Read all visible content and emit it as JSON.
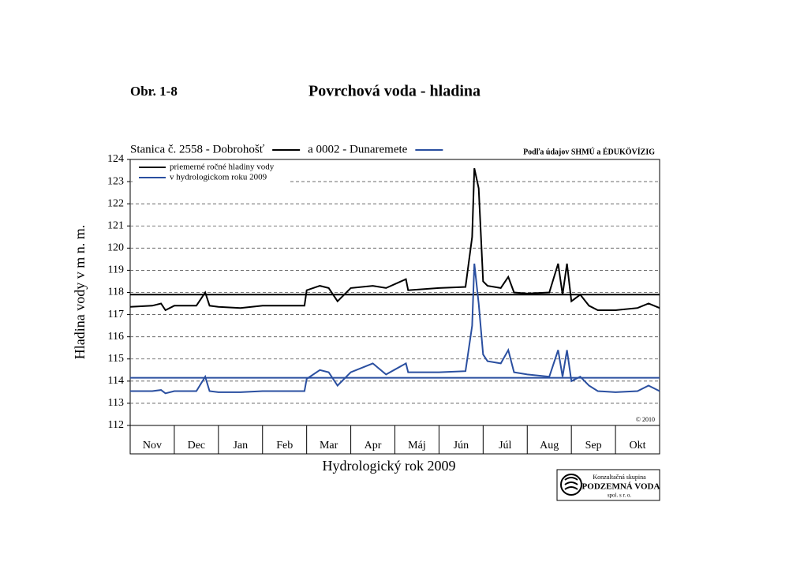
{
  "chart_data": {
    "type": "line",
    "figure_label": "Obr. 1-8",
    "title": "Povrchová voda - hladina",
    "source": "Podľa údajov SHMÚ a ÉDUKÖVÍZIG",
    "copyright": "© 2010",
    "xlabel": "Hydrologický rok 2009",
    "ylabel": "Hladina vody v m n. m.",
    "xlim": [
      0,
      12
    ],
    "xticks": [
      {
        "value": 0.5,
        "label": "Nov"
      },
      {
        "value": 1.5,
        "label": "Dec"
      },
      {
        "value": 2.5,
        "label": "Jan"
      },
      {
        "value": 3.5,
        "label": "Feb"
      },
      {
        "value": 4.5,
        "label": "Mar"
      },
      {
        "value": 5.5,
        "label": "Apr"
      },
      {
        "value": 6.5,
        "label": "Máj"
      },
      {
        "value": 7.5,
        "label": "Jún"
      },
      {
        "value": 8.5,
        "label": "Júl"
      },
      {
        "value": 9.5,
        "label": "Aug"
      },
      {
        "value": 10.5,
        "label": "Sep"
      },
      {
        "value": 11.5,
        "label": "Okt"
      }
    ],
    "ylim": [
      112,
      124
    ],
    "yticks": [
      112,
      113,
      114,
      115,
      116,
      117,
      118,
      119,
      120,
      121,
      122,
      123,
      124
    ],
    "grid": true,
    "x": [
      0,
      0.5,
      0.7,
      0.8,
      1,
      1.5,
      1.7,
      1.8,
      2,
      2.5,
      3,
      3.5,
      3.95,
      4.0,
      4.3,
      4.5,
      4.7,
      5.0,
      5.5,
      5.8,
      6.25,
      6.3,
      7.0,
      7.6,
      7.75,
      7.8,
      7.9,
      8.0,
      8.1,
      8.4,
      8.57,
      8.7,
      9.0,
      9.5,
      9.7,
      9.8,
      9.9,
      10.0,
      10.2,
      10.4,
      10.6,
      11.0,
      11.5,
      11.75,
      12
    ],
    "series": [
      {
        "name": "Stanica č. 2558 - Dobrohošť",
        "color": "#000000",
        "values": [
          117.35,
          117.4,
          117.5,
          117.2,
          117.4,
          117.4,
          118.0,
          117.4,
          117.35,
          117.3,
          117.4,
          117.4,
          117.4,
          118.1,
          118.3,
          118.2,
          117.6,
          118.2,
          118.3,
          118.2,
          118.6,
          118.1,
          118.2,
          118.25,
          120.5,
          123.6,
          122.7,
          118.5,
          118.3,
          118.2,
          118.7,
          118.0,
          117.95,
          118.0,
          119.3,
          117.9,
          119.3,
          117.6,
          117.9,
          117.4,
          117.2,
          117.2,
          117.3,
          117.5,
          117.3
        ]
      },
      {
        "name": "a 0002 - Dunaremete",
        "color": "#2a4fa0",
        "values": [
          113.55,
          113.55,
          113.6,
          113.45,
          113.55,
          113.55,
          114.2,
          113.55,
          113.5,
          113.5,
          113.55,
          113.55,
          113.55,
          114.1,
          114.5,
          114.4,
          113.8,
          114.4,
          114.8,
          114.3,
          114.8,
          114.4,
          114.4,
          114.45,
          116.5,
          119.3,
          117.5,
          115.2,
          114.9,
          114.8,
          115.4,
          114.4,
          114.3,
          114.2,
          115.4,
          114.2,
          115.4,
          114.0,
          114.2,
          113.8,
          113.55,
          113.5,
          113.55,
          113.8,
          113.55
        ]
      }
    ],
    "mean_lines": [
      {
        "value": 117.9,
        "color": "#000000"
      },
      {
        "value": 114.15,
        "color": "#2a4fa0"
      }
    ],
    "mean_legend": [
      "priemerné ročné hladiny vody",
      "v hydrologickom roku 2009"
    ],
    "logo": [
      "Konzultačná skupina",
      "PODZEMNÁ VODA",
      "spol. s r. o."
    ]
  }
}
